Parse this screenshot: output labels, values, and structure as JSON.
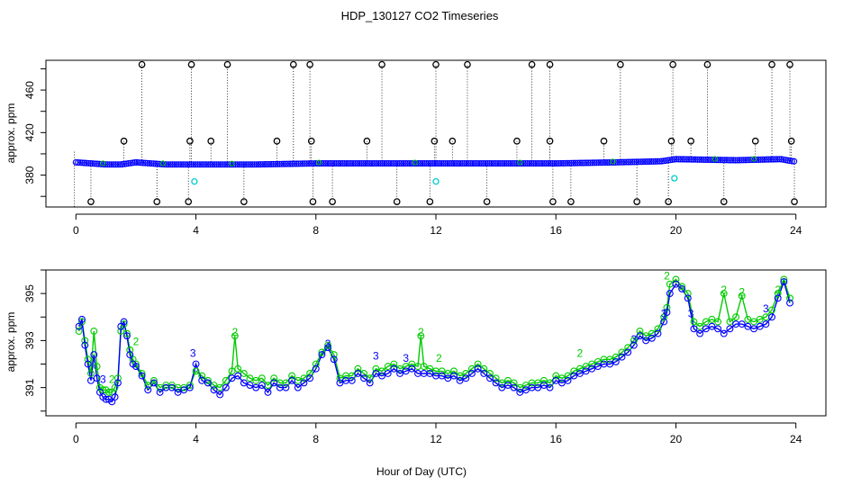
{
  "chart_data": {
    "title": "HDP_130127  CO2 Timeseries",
    "xlabel": "Hour of Day (UTC)",
    "x_ticks": [
      0,
      4,
      8,
      12,
      16,
      20,
      24
    ],
    "x_tick_labels": [
      "0",
      "4",
      "8",
      "12",
      "16",
      "20",
      "24"
    ],
    "xlim": [
      -1,
      25
    ],
    "colors": {
      "black": "#000000",
      "blue": "#0000ff",
      "green": "#00cc00",
      "cyan": "#00cccc",
      "darkblue": "#0000aa"
    },
    "panels": [
      {
        "type": "scatter",
        "ylabel": "approx. ppm",
        "ylim": [
          350,
          488
        ],
        "y_ticks": [
          380,
          420,
          460
        ],
        "y_tick_labels": [
          "380",
          "420",
          "460"
        ],
        "baseline": [
          [
            0,
            392
          ],
          [
            0.5,
            391
          ],
          [
            1.0,
            390
          ],
          [
            1.5,
            390
          ],
          [
            2.0,
            392
          ],
          [
            2.5,
            391
          ],
          [
            3.0,
            390
          ],
          [
            4.0,
            390
          ],
          [
            6.0,
            390
          ],
          [
            8.0,
            391
          ],
          [
            10.0,
            391
          ],
          [
            12.0,
            391
          ],
          [
            14.0,
            391
          ],
          [
            16.0,
            391
          ],
          [
            18.0,
            392
          ],
          [
            19.5,
            393
          ],
          [
            20.0,
            395
          ],
          [
            22.0,
            394
          ],
          [
            23.5,
            395
          ],
          [
            23.9,
            393
          ]
        ],
        "spike_high": [
          2.2,
          3.85,
          5.05,
          7.25,
          7.8,
          10.2,
          12.0,
          13.05,
          15.2,
          15.8,
          18.15,
          19.9,
          21.05,
          23.2,
          23.8
        ],
        "spike_mid": [
          1.6,
          3.8,
          4.5,
          6.7,
          7.85,
          9.7,
          11.95,
          12.55,
          14.7,
          15.8,
          17.6,
          19.85,
          20.5,
          22.65,
          23.85
        ],
        "spike_low": [
          0.5,
          2.7,
          3.75,
          5.6,
          7.9,
          8.55,
          10.7,
          11.8,
          13.7,
          15.9,
          16.5,
          18.7,
          19.75,
          21.6,
          23.95
        ],
        "cyan_points": [
          [
            3.95,
            374
          ],
          [
            12.0,
            374
          ],
          [
            19.95,
            377
          ]
        ]
      },
      {
        "type": "line",
        "ylabel": "approx. ppm",
        "ylim": [
          389.8,
          396.0
        ],
        "y_ticks": [
          391,
          393,
          395
        ],
        "y_tick_labels": [
          "391",
          "393",
          "395"
        ],
        "marker_labels": [
          "2",
          "3"
        ],
        "series": [
          {
            "name": "3",
            "color": "#0000ff",
            "x": [
              0.1,
              0.2,
              0.3,
              0.4,
              0.5,
              0.6,
              0.7,
              0.8,
              0.9,
              1.0,
              1.1,
              1.2,
              1.3,
              1.4,
              1.5,
              1.6,
              1.7,
              1.8,
              1.9,
              2.0,
              2.2,
              2.4,
              2.6,
              2.8,
              3.0,
              3.2,
              3.4,
              3.6,
              3.8,
              4.0,
              4.2,
              4.4,
              4.6,
              4.8,
              5.0,
              5.2,
              5.4,
              5.6,
              5.8,
              6.0,
              6.2,
              6.4,
              6.6,
              6.8,
              7.0,
              7.2,
              7.4,
              7.6,
              7.8,
              8.0,
              8.2,
              8.4,
              8.6,
              8.8,
              9.0,
              9.2,
              9.4,
              9.6,
              9.8,
              10.0,
              10.2,
              10.4,
              10.6,
              10.8,
              11.0,
              11.2,
              11.4,
              11.6,
              11.8,
              12.0,
              12.2,
              12.4,
              12.6,
              12.8,
              13.0,
              13.2,
              13.4,
              13.6,
              13.8,
              14.0,
              14.2,
              14.4,
              14.6,
              14.8,
              15.0,
              15.2,
              15.4,
              15.6,
              15.8,
              16.0,
              16.2,
              16.4,
              16.6,
              16.8,
              17.0,
              17.2,
              17.4,
              17.6,
              17.8,
              18.0,
              18.2,
              18.4,
              18.6,
              18.8,
              19.0,
              19.2,
              19.4,
              19.6,
              19.7,
              19.8,
              20.0,
              20.2,
              20.4,
              20.6,
              20.8,
              21.0,
              21.2,
              21.4,
              21.6,
              21.8,
              22.0,
              22.2,
              22.4,
              22.6,
              22.8,
              23.0,
              23.2,
              23.4,
              23.6,
              23.8
            ],
            "y": [
              393.6,
              393.9,
              392.8,
              392.0,
              391.3,
              392.4,
              391.4,
              390.8,
              390.6,
              390.5,
              390.5,
              390.4,
              390.6,
              391.2,
              393.6,
              393.8,
              393.2,
              392.4,
              392.0,
              391.9,
              391.5,
              390.9,
              391.2,
              390.8,
              391.0,
              391.0,
              390.8,
              390.9,
              391.0,
              392.0,
              391.3,
              391.2,
              390.9,
              390.7,
              391.0,
              391.4,
              391.5,
              391.2,
              391.1,
              391.0,
              391.1,
              390.8,
              391.2,
              391.0,
              391.0,
              391.3,
              391.0,
              391.2,
              391.4,
              391.8,
              392.4,
              392.7,
              392.2,
              391.2,
              391.3,
              391.3,
              391.6,
              391.4,
              391.2,
              391.6,
              391.5,
              391.6,
              391.8,
              391.6,
              391.7,
              391.8,
              391.6,
              391.6,
              391.6,
              391.5,
              391.5,
              391.4,
              391.5,
              391.3,
              391.4,
              391.6,
              391.8,
              391.6,
              391.4,
              391.2,
              391.0,
              391.1,
              391.0,
              390.8,
              390.9,
              391.0,
              391.0,
              391.1,
              391.0,
              391.3,
              391.2,
              391.3,
              391.5,
              391.6,
              391.7,
              391.8,
              391.9,
              392.0,
              392.0,
              392.1,
              392.3,
              392.5,
              392.8,
              393.2,
              393.0,
              393.1,
              393.3,
              393.8,
              394.2,
              395.0,
              395.4,
              395.2,
              394.8,
              393.5,
              393.3,
              393.5,
              393.6,
              393.5,
              393.3,
              393.5,
              393.7,
              393.7,
              393.6,
              393.5,
              393.6,
              393.7,
              394.0,
              394.8,
              395.5,
              394.6
            ],
            "labels": [
              [
                0.9,
                391.2
              ],
              [
                3.9,
                392.3
              ],
              [
                8.4,
                392.7
              ],
              [
                10.0,
                392.2
              ],
              [
                11.0,
                392.1
              ],
              [
                18.6,
                392.9
              ],
              [
                19.6,
                394.0
              ],
              [
                20.5,
                394.0
              ],
              [
                23.0,
                394.2
              ]
            ]
          },
          {
            "name": "2",
            "color": "#00cc00",
            "x": [
              0.1,
              0.2,
              0.3,
              0.4,
              0.5,
              0.6,
              0.7,
              0.8,
              0.9,
              1.0,
              1.1,
              1.2,
              1.3,
              1.4,
              1.5,
              1.6,
              1.7,
              1.8,
              1.9,
              2.0,
              2.2,
              2.4,
              2.6,
              2.8,
              3.0,
              3.2,
              3.4,
              3.6,
              3.8,
              4.0,
              4.2,
              4.4,
              4.6,
              4.8,
              5.0,
              5.2,
              5.3,
              5.4,
              5.6,
              5.8,
              6.0,
              6.2,
              6.4,
              6.6,
              6.8,
              7.0,
              7.2,
              7.4,
              7.6,
              7.8,
              8.0,
              8.2,
              8.4,
              8.6,
              8.8,
              9.0,
              9.2,
              9.4,
              9.6,
              9.8,
              10.0,
              10.2,
              10.4,
              10.6,
              10.8,
              11.0,
              11.2,
              11.4,
              11.5,
              11.6,
              11.8,
              12.0,
              12.2,
              12.4,
              12.6,
              12.8,
              13.0,
              13.2,
              13.4,
              13.6,
              13.8,
              14.0,
              14.2,
              14.4,
              14.6,
              14.8,
              15.0,
              15.2,
              15.4,
              15.6,
              15.8,
              16.0,
              16.2,
              16.4,
              16.6,
              16.8,
              17.0,
              17.2,
              17.4,
              17.6,
              17.8,
              18.0,
              18.2,
              18.4,
              18.6,
              18.8,
              19.0,
              19.2,
              19.4,
              19.6,
              19.7,
              19.8,
              20.0,
              20.2,
              20.4,
              20.6,
              20.8,
              21.0,
              21.2,
              21.4,
              21.6,
              21.8,
              22.0,
              22.2,
              22.4,
              22.6,
              22.8,
              23.0,
              23.2,
              23.4,
              23.6,
              23.8
            ],
            "y": [
              393.4,
              393.8,
              393.0,
              392.2,
              391.6,
              393.4,
              391.9,
              391.0,
              390.9,
              390.9,
              390.8,
              390.8,
              391.0,
              391.4,
              393.4,
              393.7,
              393.3,
              392.6,
              392.2,
              392.0,
              391.6,
              391.1,
              391.3,
              391.0,
              391.1,
              391.1,
              391.0,
              391.0,
              391.1,
              391.7,
              391.5,
              391.3,
              391.1,
              391.0,
              391.3,
              391.7,
              393.2,
              391.8,
              391.6,
              391.4,
              391.3,
              391.4,
              391.1,
              391.4,
              391.2,
              391.2,
              391.5,
              391.3,
              391.4,
              391.6,
              392.0,
              392.5,
              392.8,
              392.4,
              391.4,
              391.5,
              391.5,
              391.8,
              391.6,
              391.4,
              391.8,
              391.7,
              391.9,
              392.0,
              391.8,
              391.9,
              392.0,
              391.9,
              393.2,
              391.9,
              391.8,
              391.7,
              391.7,
              391.6,
              391.7,
              391.5,
              391.6,
              391.8,
              392.0,
              391.8,
              391.6,
              391.4,
              391.2,
              391.3,
              391.2,
              391.0,
              391.1,
              391.2,
              391.2,
              391.3,
              391.2,
              391.5,
              391.4,
              391.5,
              391.7,
              391.8,
              391.9,
              392.0,
              392.1,
              392.2,
              392.2,
              392.3,
              392.5,
              392.7,
              393.0,
              393.4,
              393.2,
              393.3,
              393.5,
              394.0,
              394.4,
              395.4,
              395.6,
              395.3,
              395.0,
              393.8,
              393.6,
              393.8,
              393.9,
              393.8,
              395.0,
              393.8,
              394.0,
              394.9,
              393.9,
              393.8,
              393.9,
              394.0,
              394.3,
              395.0,
              395.6,
              394.8
            ],
            "labels": [
              [
                1.2,
                391.2
              ],
              [
                2.0,
                392.8
              ],
              [
                5.3,
                393.2
              ],
              [
                11.5,
                393.2
              ],
              [
                12.1,
                392.1
              ],
              [
                16.8,
                392.3
              ],
              [
                19.7,
                395.6
              ],
              [
                21.6,
                395.0
              ],
              [
                22.2,
                394.9
              ],
              [
                23.4,
                395.0
              ]
            ]
          }
        ]
      }
    ]
  }
}
